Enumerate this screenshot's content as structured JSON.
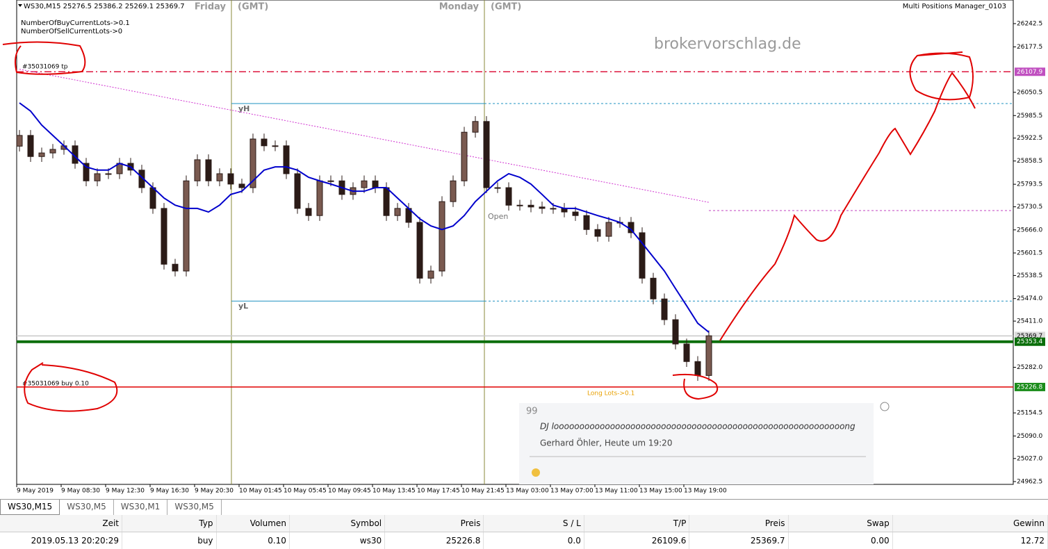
{
  "header": {
    "symbol_info": "WS30,M15  25276.5 25386.2 25269.1 25369.7",
    "indicator": "Multi Positions Manager_0103",
    "buy_lots": "NumberOfBuyCurrentLots->0.1",
    "sell_lots": "NumberOfSellCurrentLots->0",
    "watermark": "brokervorschlag.de"
  },
  "chart": {
    "type": "candlestick",
    "sessions": [
      {
        "day": "Friday",
        "tz": "(GMT)"
      },
      {
        "day": "Monday",
        "tz": "(GMT)"
      }
    ],
    "labels": {
      "tp": "#35031069 tp",
      "buy": "#35031069 buy 0.10",
      "long_lots": "Long Lots->0.1",
      "open": "Open",
      "yh": "yH",
      "yl": "yL"
    },
    "ylim": [
      24954.7,
      26308.5
    ],
    "yticks": [
      26242.5,
      26177.5,
      26050.5,
      25985.5,
      25922.5,
      25858.5,
      25793.5,
      25730.5,
      {
        "value": 25666,
        "label": "25666.0"
      },
      25601.5,
      25538.5,
      {
        "value": 25474,
        "label": "25474.0"
      },
      {
        "value": 25411,
        "label": "25411.0"
      },
      {
        "value": 25282,
        "label": "25282.0"
      },
      25154.5,
      {
        "value": 25090,
        "label": "25090.0"
      },
      {
        "value": 25027,
        "label": "25027.0"
      },
      24962.5
    ],
    "xlabels": [
      "9 May 2019",
      "9 May 08:30",
      "9 May 12:30",
      "9 May 16:30",
      "9 May 20:30",
      "10 May 01:45",
      "10 May 05:45",
      "10 May 09:45",
      "10 May 13:45",
      "10 May 17:45",
      "10 May 21:45",
      "13 May 03:00",
      "13 May 07:00",
      "13 May 11:00",
      "13 May 15:00",
      "13 May 19:00"
    ],
    "open": [
      25900,
      25930,
      25871,
      25881,
      25891,
      25901,
      25852,
      25803,
      25823,
      25823,
      25852,
      25833,
      25784,
      25726,
      25570,
      25551,
      25803,
      25862,
      25803,
      25823,
      25794,
      25784,
      25920,
      25901,
      25901,
      25823,
      25726,
      25706,
      25803,
      25803,
      25765,
      25784,
      25803,
      25784,
      25706,
      25726,
      25687,
      25531,
      25551,
      25745,
      25803,
      25939,
      25969,
      25784,
      25784,
      25735,
      25735,
      25730,
      25726,
      25726,
      25716,
      25706,
      25667,
      25648,
      25687,
      25687,
      25658,
      25531,
      25473,
      25415,
      25347,
      25298,
      25259
    ],
    "high": [
      25945,
      25945,
      25896,
      25906,
      25916,
      25916,
      25867,
      25838,
      25838,
      25867,
      25867,
      25848,
      25799,
      25741,
      25585,
      25818,
      25877,
      25877,
      25838,
      25838,
      25809,
      25935,
      25935,
      25916,
      25916,
      25838,
      25741,
      25818,
      25818,
      25818,
      25799,
      25818,
      25818,
      25799,
      25741,
      25741,
      25702,
      25566,
      25760,
      25818,
      25954,
      25984,
      25984,
      25799,
      25799,
      25750,
      25750,
      25745,
      25741,
      25741,
      25731,
      25721,
      25682,
      25702,
      25702,
      25702,
      25673,
      25546,
      25488,
      25430,
      25362,
      25313,
      25385
    ],
    "low": [
      25885,
      25856,
      25856,
      25866,
      25876,
      25837,
      25788,
      25788,
      25808,
      25808,
      25818,
      25769,
      25711,
      25555,
      25536,
      25536,
      25788,
      25788,
      25788,
      25779,
      25769,
      25769,
      25886,
      25886,
      25808,
      25711,
      25691,
      25691,
      25788,
      25750,
      25750,
      25769,
      25769,
      25691,
      25691,
      25672,
      25516,
      25516,
      25536,
      25730,
      25788,
      25924,
      25769,
      25769,
      25720,
      25720,
      25715,
      25711,
      25711,
      25701,
      25691,
      25652,
      25633,
      25633,
      25672,
      25643,
      25516,
      25458,
      25400,
      25332,
      25283,
      25244,
      25244
    ],
    "close": [
      25930,
      25871,
      25881,
      25891,
      25901,
      25852,
      25803,
      25823,
      25823,
      25852,
      25833,
      25784,
      25726,
      25570,
      25551,
      25803,
      25862,
      25803,
      25823,
      25794,
      25784,
      25920,
      25901,
      25901,
      25823,
      25726,
      25706,
      25803,
      25803,
      25765,
      25784,
      25803,
      25784,
      25706,
      25726,
      25687,
      25531,
      25551,
      25745,
      25803,
      25939,
      25969,
      25784,
      25784,
      25735,
      25735,
      25730,
      25726,
      25726,
      25716,
      25706,
      25667,
      25648,
      25687,
      25687,
      25658,
      25531,
      25473,
      25415,
      25347,
      25298,
      25259,
      25370
    ],
    "ma_fast": {
      "color": "#0000cc",
      "values": [
        26021,
        25998,
        25959,
        25930,
        25901,
        25871,
        25842,
        25833,
        25833,
        25852,
        25842,
        25813,
        25784,
        25755,
        25735,
        25726,
        25726,
        25716,
        25735,
        25765,
        25774,
        25803,
        25833,
        25842,
        25842,
        25833,
        25813,
        25803,
        25794,
        25784,
        25774,
        25774,
        25784,
        25784,
        25755,
        25726,
        25697,
        25677,
        25667,
        25677,
        25706,
        25745,
        25774,
        25803,
        25823,
        25813,
        25794,
        25765,
        25735,
        25726,
        25726,
        25716,
        25706,
        25697,
        25687,
        25667,
        25629,
        25590,
        25551,
        25502,
        25454,
        25405,
        25380
      ]
    },
    "ma_slow": {
      "color": "#d030d0",
      "values": [
        26115,
        26109,
        26103,
        26097,
        26091,
        26085,
        26079,
        26073,
        26067,
        26061,
        26055,
        26049,
        26043,
        26037,
        26031,
        26025,
        26019,
        26013,
        26007,
        26001,
        25995,
        25989,
        25983,
        25977,
        25971,
        25965,
        25959,
        25953,
        25947,
        25941,
        25935,
        25929,
        25923,
        25917,
        25911,
        25905,
        25899,
        25893,
        25887,
        25881,
        25875,
        25869,
        25863,
        25857,
        25851,
        25845,
        25839,
        25833,
        25827,
        25821,
        25815,
        25809,
        25803,
        25797,
        25791,
        25785,
        25779,
        25773,
        25767,
        25761,
        25755,
        25749,
        25743
      ]
    },
    "levels": [
      {
        "value": 26107.9,
        "color": "#dc143c",
        "style": "dashdot",
        "tag_color": "#c050c0"
      },
      {
        "value": 26019,
        "color": "#1e90c0",
        "style": "box"
      },
      {
        "value": 25720,
        "color": "#c040c0",
        "style": "dashed"
      },
      {
        "value": 25467,
        "color": "#1e90c0",
        "style": "box"
      },
      {
        "value": 25369.7,
        "color": "#c8c8c8",
        "style": "solid",
        "tag_color": "#dcdcdc"
      },
      {
        "value": 25353.4,
        "color": "#0a6e0a",
        "style": "thick",
        "tag_color": "#0a6e0a"
      },
      {
        "value": 25226.8,
        "color": "#e00000",
        "style": "solid",
        "tag_color": "#1a8c1a"
      }
    ]
  },
  "comment": {
    "quote": "99",
    "text": "DJ looooooooooooooooooooooooooooooooooooooooooooooooooooooooong",
    "author": "Gerhard Öhler, Heute um 19:20"
  },
  "tabs": [
    "WS30,M15",
    "WS30,M5",
    "WS30,M1",
    "WS30,M5"
  ],
  "table": {
    "columns": [
      "Zeit",
      "Typ",
      "Volumen",
      "Symbol",
      "Preis",
      "S / L",
      "T/P",
      "Preis",
      "Swap",
      "Gewinn"
    ],
    "rows": [
      [
        "2019.05.13 20:20:29",
        "buy",
        "0.10",
        "ws30",
        "25226.8",
        "0.0",
        "26109.6",
        "25369.7",
        "0.00",
        "12.72"
      ]
    ]
  }
}
